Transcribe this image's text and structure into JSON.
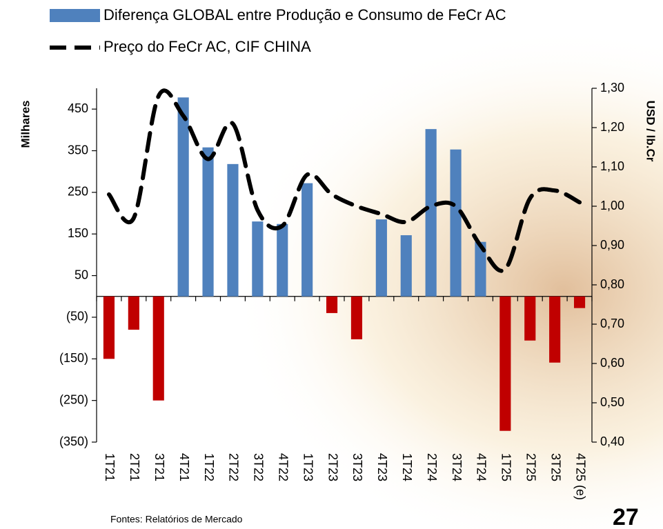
{
  "chart_data": {
    "type": "bar",
    "categories": [
      "1T21",
      "2T21",
      "3T21",
      "4T21",
      "1T22",
      "2T22",
      "3T22",
      "4T22",
      "1T23",
      "2T23",
      "3T23",
      "4T23",
      "1T24",
      "2T24",
      "3T24",
      "4T24",
      "1T25",
      "2T25",
      "3T25",
      "4T25 (e)"
    ],
    "series": [
      {
        "name": "Diferença GLOBAL entre Produção e Consumo de FeCr AC",
        "type": "bar",
        "color": "#4f81bd",
        "negative_color": "#c00000",
        "values": [
          -150,
          -80,
          -250,
          478,
          358,
          318,
          180,
          174,
          272,
          -40,
          -103,
          185,
          147,
          402,
          353,
          131,
          -323,
          -106,
          -159,
          -28
        ]
      },
      {
        "name": "Preço do FeCr AC, CIF CHINA",
        "type": "line",
        "axis": "y2",
        "color": "#000000",
        "values": [
          1.03,
          0.97,
          1.28,
          1.23,
          1.12,
          1.21,
          0.99,
          0.95,
          1.08,
          1.03,
          1.0,
          0.98,
          0.96,
          1.0,
          1.0,
          0.9,
          0.84,
          1.02,
          1.04,
          1.01
        ]
      }
    ],
    "ylabel": "Milhares",
    "y2label": "USD / lb.Cr",
    "ylim": [
      -350,
      500
    ],
    "yticks": [
      450,
      350,
      250,
      150,
      50,
      {
        "value": -50,
        "label": "(50)"
      },
      {
        "value": -150,
        "label": "(150)"
      },
      {
        "value": -250,
        "label": "(250)"
      },
      {
        "value": -350,
        "label": "(350)"
      }
    ],
    "y2lim": [
      0.4,
      1.3
    ],
    "y2ticks": [
      {
        "value": 1.3,
        "label": "1,30"
      },
      {
        "value": 1.2,
        "label": "1,20"
      },
      {
        "value": 1.1,
        "label": "1,10"
      },
      {
        "value": 1.0,
        "label": "1,00"
      },
      {
        "value": 0.9,
        "label": "0,90"
      },
      {
        "value": 0.8,
        "label": "0,80"
      },
      {
        "value": 0.7,
        "label": "0,70"
      },
      {
        "value": 0.6,
        "label": "0,60"
      },
      {
        "value": 0.5,
        "label": "0,50"
      },
      {
        "value": 0.4,
        "label": "0,40"
      }
    ],
    "grid": false
  },
  "footer": {
    "source": "Fontes: Relatórios de Mercado",
    "page_number": "27"
  }
}
